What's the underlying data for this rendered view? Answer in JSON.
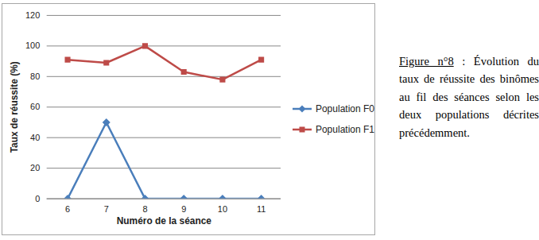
{
  "chart_data": {
    "type": "line",
    "caption": "Figure n°8 : Évolution du taux de réussite des binômes au fil des séances selon les deux populations décrites précédemment.",
    "xlabel": "Numéro de la séance",
    "ylabel": "Taux de réussite (%)",
    "categories": [
      "6",
      "7",
      "8",
      "9",
      "10",
      "11"
    ],
    "series": [
      {
        "name": "Population F0",
        "color": "#4a7ebb",
        "marker": "diamond",
        "values": [
          0,
          50,
          0,
          0,
          0,
          0
        ]
      },
      {
        "name": "Population F1",
        "color": "#be4b48",
        "marker": "square",
        "values": [
          91,
          89,
          100,
          83,
          78,
          91
        ]
      }
    ],
    "ylim": [
      0,
      120
    ],
    "yticks": [
      0,
      20,
      40,
      60,
      80,
      100,
      120
    ],
    "grid": true,
    "legend": "right"
  }
}
